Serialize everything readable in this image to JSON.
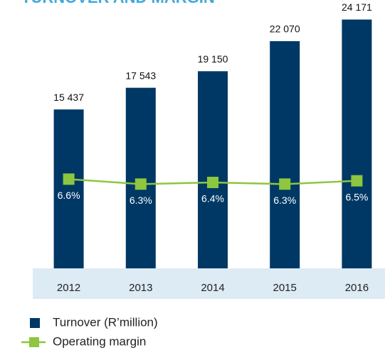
{
  "chart_data": {
    "type": "bar_line",
    "title": "TURNOVER AND MARGIN",
    "categories": [
      "2012",
      "2013",
      "2014",
      "2015",
      "2016"
    ],
    "series": [
      {
        "name": "Turnover (R’million)",
        "type": "bar",
        "color": "#003865",
        "values": [
          15437,
          17543,
          19150,
          22070,
          24171
        ],
        "value_labels": [
          "15 437",
          "17 543",
          "19 150",
          "22 070",
          "24 171"
        ]
      },
      {
        "name": "Operating margin",
        "type": "line",
        "axis": "y2",
        "color": "#8dc63f",
        "values": [
          6.6,
          6.3,
          6.4,
          6.3,
          6.5
        ],
        "value_labels": [
          "6.6%",
          "6.3%",
          "6.4%",
          "6.3%",
          "6.5%"
        ]
      }
    ],
    "ylim": [
      0,
      26000
    ],
    "y2lim": [
      1.2,
      17.4
    ],
    "legend": "bottom-left"
  }
}
